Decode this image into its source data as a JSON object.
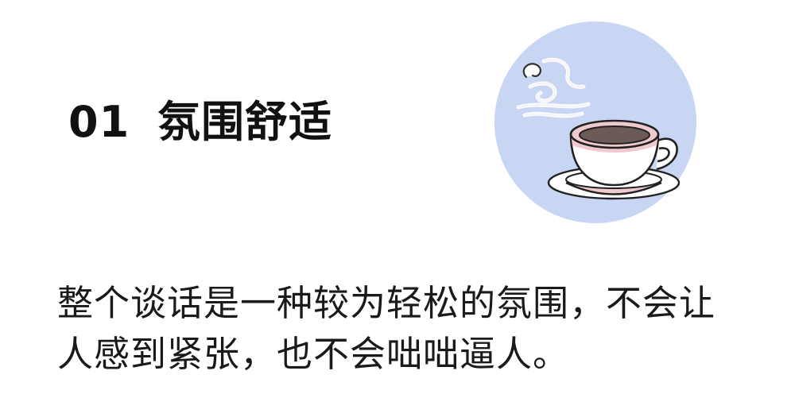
{
  "section": {
    "number": "01",
    "title": "氛围舒适"
  },
  "illustration": {
    "icon": "coffee-cup-icon",
    "circle_color": "#c9d6f3",
    "cup_color": "#ffffff",
    "band_color": "#f0c9cf",
    "coffee_color": "#6b5a55",
    "steam_color": "#ffffff"
  },
  "body": {
    "line1": "整个谈话是一种较为轻松的氛围，不会让",
    "line2": "人感到紧张，也不会咄咄逼人。"
  }
}
